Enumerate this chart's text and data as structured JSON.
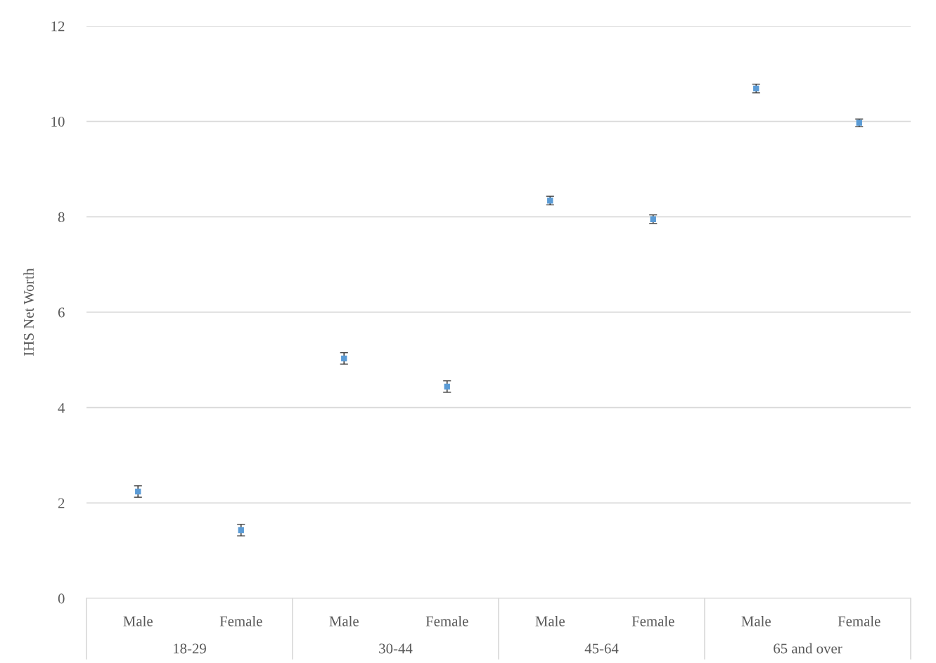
{
  "chart_data": {
    "type": "scatter",
    "ylabel": "IHS Net Worth",
    "categories": [
      "Male",
      "Female",
      "Male",
      "Female",
      "Male",
      "Female",
      "Male",
      "Female"
    ],
    "annotations": [
      "18-29",
      "30-44",
      "45-64",
      "65 and over"
    ],
    "series": [
      {
        "color": "#5b9bd5",
        "values": [
          2.24,
          1.43,
          5.03,
          4.44,
          8.34,
          7.95,
          10.69,
          9.97
        ],
        "errors": [
          0.12,
          0.12,
          0.12,
          0.12,
          0.09,
          0.09,
          0.09,
          0.08
        ]
      }
    ],
    "ylim": [
      0,
      12
    ],
    "yticks": [
      0,
      2,
      4,
      6,
      8,
      10,
      12
    ],
    "grid": "y",
    "marker": "square",
    "legend": false
  }
}
